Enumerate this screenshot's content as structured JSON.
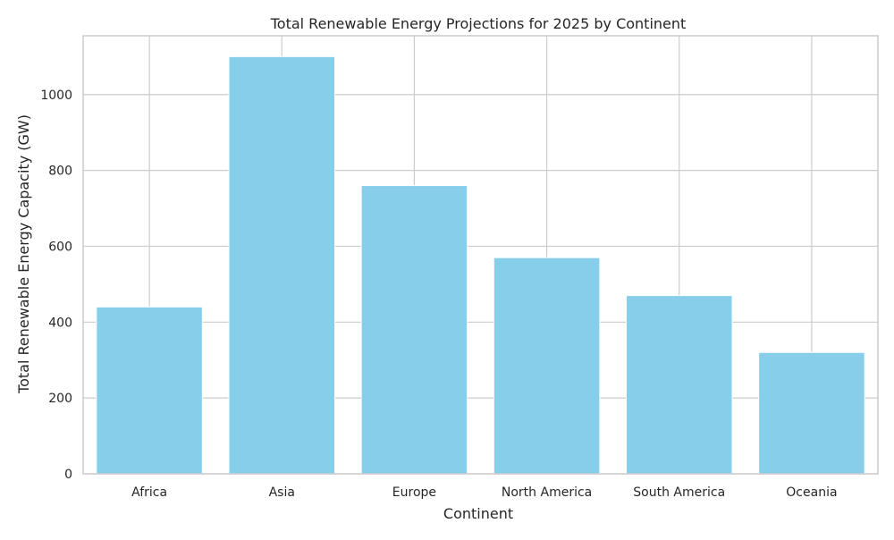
{
  "chart_data": {
    "type": "bar",
    "title": "Total Renewable Energy Projections for 2025 by Continent",
    "xlabel": "Continent",
    "ylabel": "Total Renewable Energy Capacity (GW)",
    "categories": [
      "Africa",
      "Asia",
      "Europe",
      "North America",
      "South America",
      "Oceania"
    ],
    "values": [
      440,
      1100,
      760,
      570,
      470,
      320
    ],
    "ylim": [
      0,
      1155
    ],
    "yticks": [
      0,
      200,
      400,
      600,
      800,
      1000
    ],
    "grid": true,
    "bar_color": "#87CEEB",
    "grid_color": "#cccccc",
    "spine_color": "#cccccc"
  }
}
